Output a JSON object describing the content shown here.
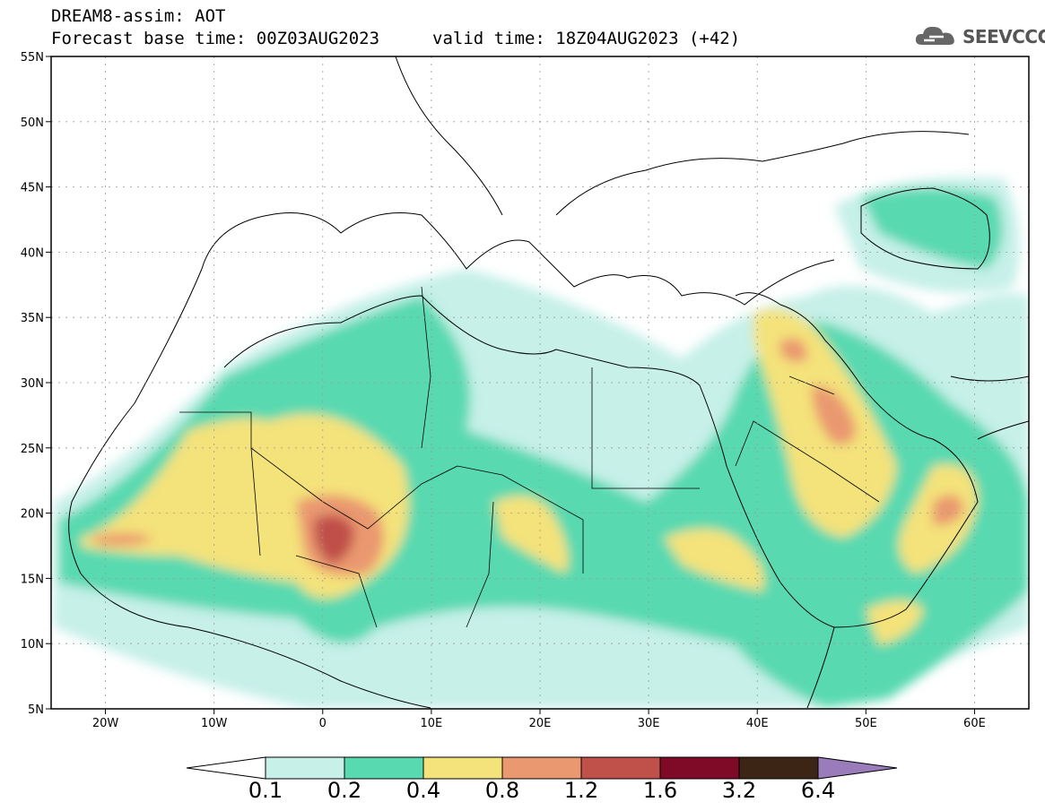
{
  "header": {
    "title": "DREAM8-assim: AOT",
    "forecast_base": "Forecast base time: 00Z03AUG2023",
    "valid_time": "valid time: 18Z04AUG2023 (+42)"
  },
  "logo": {
    "text": "SEEVCCC",
    "icon": "cloud-icon"
  },
  "map": {
    "lon_range": [
      -25,
      65
    ],
    "lat_range": [
      5,
      55
    ],
    "lat_ticks": [
      "55N",
      "50N",
      "45N",
      "40N",
      "35N",
      "30N",
      "25N",
      "20N",
      "15N",
      "10N",
      "5N"
    ],
    "lon_ticks": [
      "20W",
      "10W",
      "0",
      "10E",
      "20E",
      "30E",
      "40E",
      "50E",
      "60E"
    ],
    "grid": "dotted"
  },
  "colorbar": {
    "labels": [
      "0.1",
      "0.2",
      "0.4",
      "0.8",
      "1.2",
      "1.6",
      "3.2",
      "6.4"
    ],
    "colors": [
      "#c6f0e8",
      "#59d9b0",
      "#f4e27a",
      "#ea9870",
      "#c0504a",
      "#7e0a28",
      "#3c2515",
      "#9b7cba"
    ],
    "under_color": "#ffffff"
  }
}
